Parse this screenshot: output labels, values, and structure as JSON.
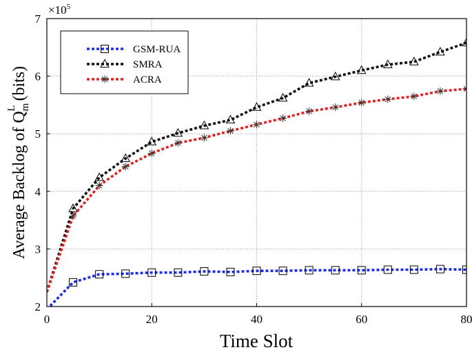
{
  "chart_data": {
    "type": "line",
    "title": "",
    "xlabel": "Time Slot",
    "ylabel": {
      "prefix": "Average Backlog of Q",
      "subscript": "m",
      "superscript": "L",
      "suffix": " (bits)"
    },
    "y_multiplier": {
      "base": "×10",
      "exponent": "5"
    },
    "xlim": [
      0,
      80
    ],
    "ylim": [
      2,
      7
    ],
    "xticks": [
      0,
      20,
      40,
      60,
      80
    ],
    "yticks": [
      2,
      3,
      4,
      5,
      6,
      7
    ],
    "grid": true,
    "legend_position": "top-left",
    "x": [
      0,
      5,
      10,
      15,
      20,
      25,
      30,
      35,
      40,
      45,
      50,
      55,
      60,
      65,
      70,
      75,
      80
    ],
    "series": [
      {
        "name": "GSM-RUA",
        "color": "#1f2ee6",
        "marker": "square",
        "values": [
          1.95,
          2.42,
          2.56,
          2.57,
          2.59,
          2.59,
          2.61,
          2.6,
          2.62,
          2.62,
          2.63,
          2.63,
          2.63,
          2.64,
          2.64,
          2.65,
          2.64
        ]
      },
      {
        "name": "SMRA",
        "color": "#111111",
        "marker": "triangle",
        "values": [
          2.25,
          3.7,
          4.24,
          4.57,
          4.86,
          5.01,
          5.14,
          5.24,
          5.46,
          5.62,
          5.88,
          5.99,
          6.1,
          6.2,
          6.25,
          6.42,
          6.58
        ]
      },
      {
        "name": "ACRA",
        "color": "#e02424",
        "marker": "asterisk",
        "values": [
          2.25,
          3.57,
          4.1,
          4.43,
          4.66,
          4.84,
          4.93,
          5.05,
          5.16,
          5.27,
          5.39,
          5.46,
          5.54,
          5.6,
          5.65,
          5.74,
          5.78
        ]
      }
    ]
  }
}
